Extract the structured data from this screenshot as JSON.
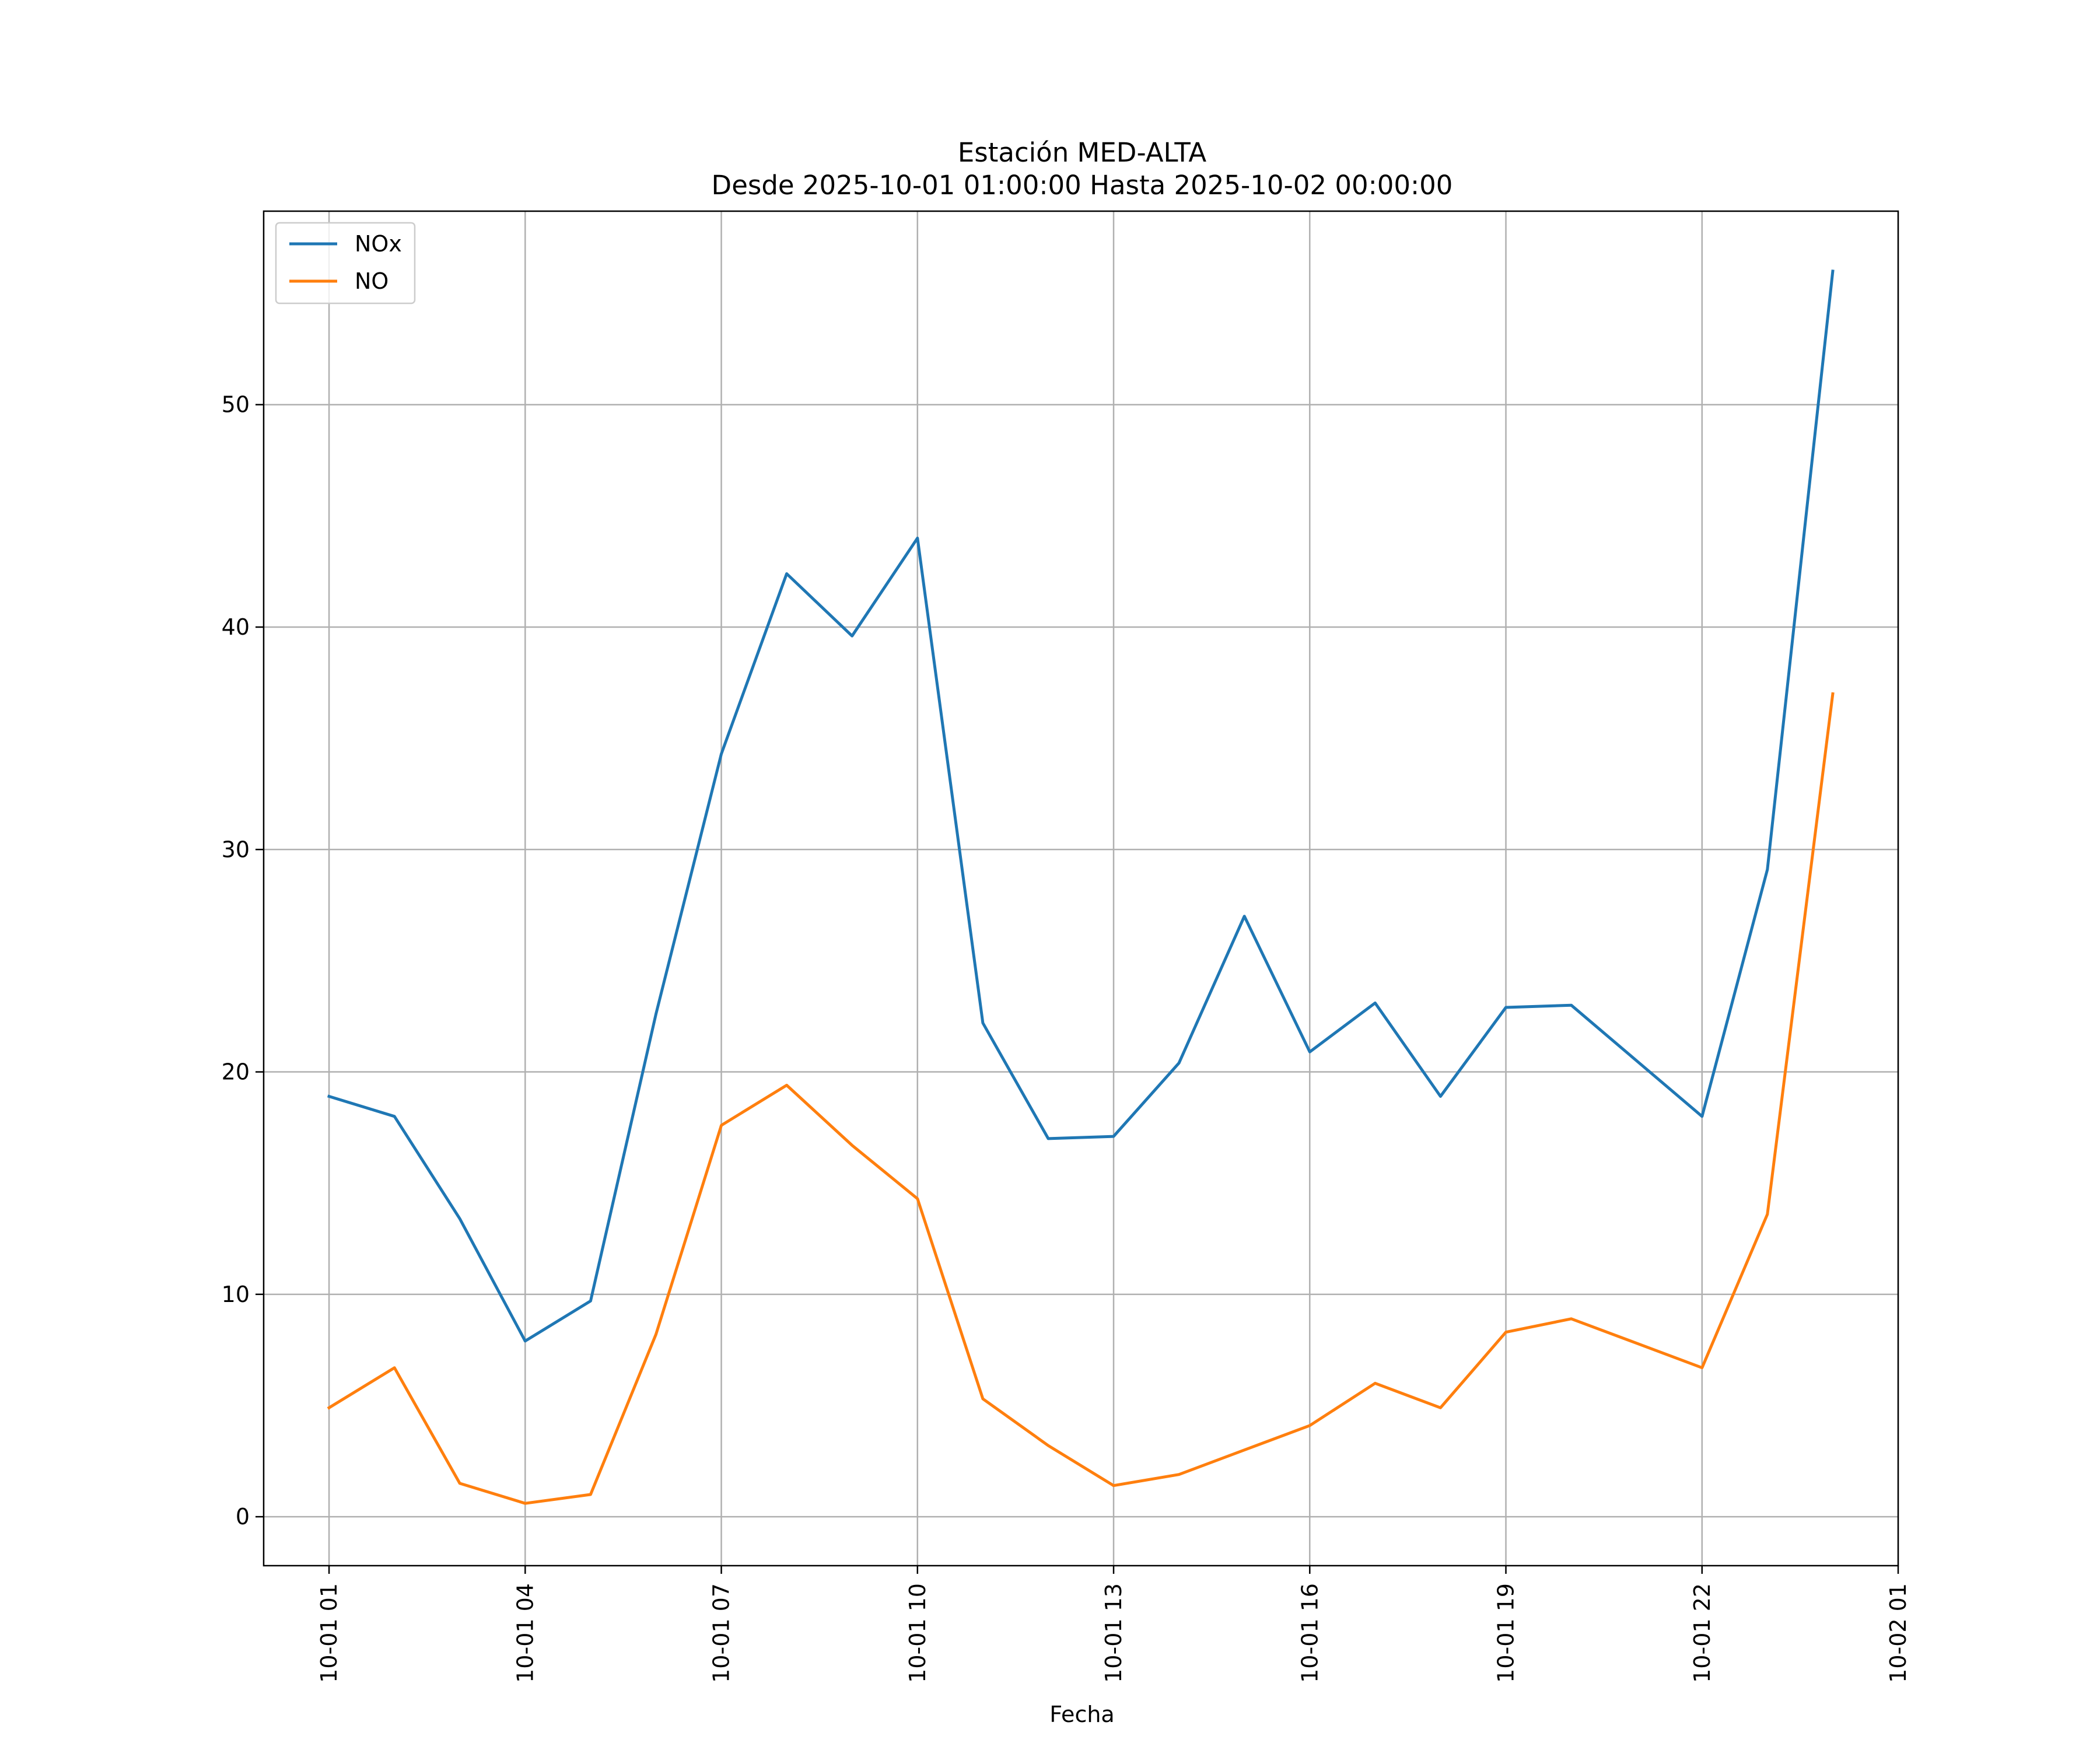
{
  "chart_data": {
    "type": "line",
    "title": "Estación MED-ALTA",
    "subtitle": "Desde 2025-10-01 01:00:00 Hasta 2025-10-02 00:00:00",
    "xlabel": "Fecha",
    "ylabel": "",
    "x": [
      "2025-10-01 01:00",
      "2025-10-01 02:00",
      "2025-10-01 03:00",
      "2025-10-01 04:00",
      "2025-10-01 05:00",
      "2025-10-01 06:00",
      "2025-10-01 07:00",
      "2025-10-01 08:00",
      "2025-10-01 09:00",
      "2025-10-01 10:00",
      "2025-10-01 11:00",
      "2025-10-01 12:00",
      "2025-10-01 13:00",
      "2025-10-01 14:00",
      "2025-10-01 15:00",
      "2025-10-01 16:00",
      "2025-10-01 17:00",
      "2025-10-01 18:00",
      "2025-10-01 19:00",
      "2025-10-01 20:00",
      "2025-10-01 21:00",
      "2025-10-01 22:00",
      "2025-10-01 23:00",
      "2025-10-02 00:00"
    ],
    "series": [
      {
        "name": "NOx",
        "color": "#1f77b4",
        "values": [
          18.9,
          18.0,
          13.4,
          7.9,
          9.7,
          22.6,
          34.3,
          42.4,
          39.6,
          44.0,
          22.2,
          17.0,
          17.1,
          20.4,
          27.0,
          20.9,
          23.1,
          18.9,
          22.9,
          23.0,
          20.5,
          18.0,
          29.1,
          56.0
        ]
      },
      {
        "name": "NO",
        "color": "#ff7f0e",
        "values": [
          4.9,
          6.7,
          1.5,
          0.6,
          1.0,
          8.2,
          17.6,
          19.4,
          16.7,
          14.3,
          5.3,
          3.2,
          1.4,
          1.9,
          3.0,
          4.1,
          6.0,
          4.9,
          8.3,
          8.9,
          7.8,
          6.7,
          13.6,
          37.0
        ]
      }
    ],
    "xlim": [
      "2025-10-01 00:00",
      "2025-10-02 01:00"
    ],
    "ylim": [
      -2.2,
      58.7
    ],
    "xticks": [
      {
        "x": "2025-10-01 01:00",
        "label": "10-01 01"
      },
      {
        "x": "2025-10-01 04:00",
        "label": "10-01 04"
      },
      {
        "x": "2025-10-01 07:00",
        "label": "10-01 07"
      },
      {
        "x": "2025-10-01 10:00",
        "label": "10-01 10"
      },
      {
        "x": "2025-10-01 13:00",
        "label": "10-01 13"
      },
      {
        "x": "2025-10-01 16:00",
        "label": "10-01 16"
      },
      {
        "x": "2025-10-01 19:00",
        "label": "10-01 19"
      },
      {
        "x": "2025-10-01 22:00",
        "label": "10-01 22"
      },
      {
        "x": "2025-10-02 01:00",
        "label": "10-02 01"
      }
    ],
    "yticks": [
      0,
      10,
      20,
      30,
      40,
      50
    ],
    "grid": true,
    "legend": "upper-left"
  }
}
